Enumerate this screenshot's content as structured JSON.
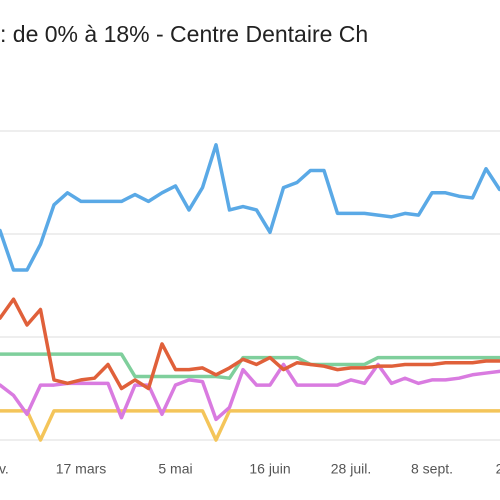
{
  "chart_data": {
    "type": "line",
    "title": ": de 0% à 18% - Centre Dentaire Ch",
    "categories": [
      "nv.",
      null,
      null,
      null,
      null,
      null,
      "17 mars",
      null,
      null,
      null,
      null,
      null,
      null,
      "5 mai",
      null,
      null,
      null,
      null,
      null,
      null,
      "16 juin",
      null,
      null,
      null,
      null,
      null,
      "28 juil.",
      null,
      null,
      null,
      null,
      null,
      "8 sept.",
      null,
      null,
      null,
      null,
      "2"
    ],
    "ylim": [
      0,
      18
    ],
    "yticks": [
      0,
      6,
      12,
      18
    ],
    "grid": true,
    "series": [
      {
        "color": "#5aa9e6",
        "values": [
          12.2,
          9.9,
          9.9,
          11.4,
          13.7,
          14.4,
          13.9,
          13.9,
          13.9,
          13.9,
          14.3,
          13.9,
          14.4,
          14.8,
          13.4,
          14.7,
          17.2,
          13.4,
          13.6,
          13.4,
          12.1,
          14.7,
          15.0,
          15.7,
          15.7,
          13.2,
          13.2,
          13.2,
          13.1,
          13.0,
          13.2,
          13.1,
          14.4,
          14.4,
          14.2,
          14.1,
          15.8,
          14.6
        ]
      },
      {
        "color": "#7fcf9c",
        "values": [
          5.0,
          5.0,
          5.0,
          5.0,
          5.0,
          5.0,
          5.0,
          5.0,
          5.0,
          5.0,
          3.7,
          3.7,
          3.7,
          3.7,
          3.7,
          3.7,
          3.7,
          3.6,
          4.8,
          4.8,
          4.8,
          4.8,
          4.8,
          4.4,
          4.4,
          4.4,
          4.4,
          4.4,
          4.8,
          4.8,
          4.8,
          4.8,
          4.8,
          4.8,
          4.8,
          4.8,
          4.8,
          4.8
        ]
      },
      {
        "color": "#f4c55a",
        "values": [
          1.7,
          1.7,
          1.7,
          0,
          1.7,
          1.7,
          1.7,
          1.7,
          1.7,
          1.7,
          1.7,
          1.7,
          1.7,
          1.7,
          1.7,
          1.7,
          0,
          1.7,
          1.7,
          1.7,
          1.7,
          1.7,
          1.7,
          1.7,
          1.7,
          1.7,
          1.7,
          1.7,
          1.7,
          1.7,
          1.7,
          1.7,
          1.7,
          1.7,
          1.7,
          1.7,
          1.7,
          1.7
        ]
      },
      {
        "color": "#d97be0",
        "values": [
          3.2,
          2.6,
          1.5,
          3.2,
          3.2,
          3.3,
          3.3,
          3.3,
          3.3,
          1.3,
          3.2,
          3.2,
          1.5,
          3.2,
          3.5,
          3.4,
          1.2,
          1.9,
          4.1,
          3.2,
          3.2,
          4.4,
          3.2,
          3.2,
          3.2,
          3.2,
          3.5,
          3.3,
          4.4,
          3.3,
          3.6,
          3.3,
          3.5,
          3.5,
          3.6,
          3.8,
          3.9,
          4.0
        ]
      },
      {
        "color": "#e0603a",
        "values": [
          7.1,
          8.2,
          6.7,
          7.6,
          3.5,
          3.3,
          3.5,
          3.6,
          4.4,
          3.0,
          3.5,
          3.0,
          5.6,
          4.1,
          4.1,
          4.2,
          3.8,
          4.2,
          4.7,
          4.4,
          4.8,
          4.1,
          4.5,
          4.4,
          4.3,
          4.1,
          4.2,
          4.2,
          4.3,
          4.3,
          4.4,
          4.4,
          4.4,
          4.5,
          4.5,
          4.5,
          4.6,
          4.6
        ]
      }
    ]
  }
}
